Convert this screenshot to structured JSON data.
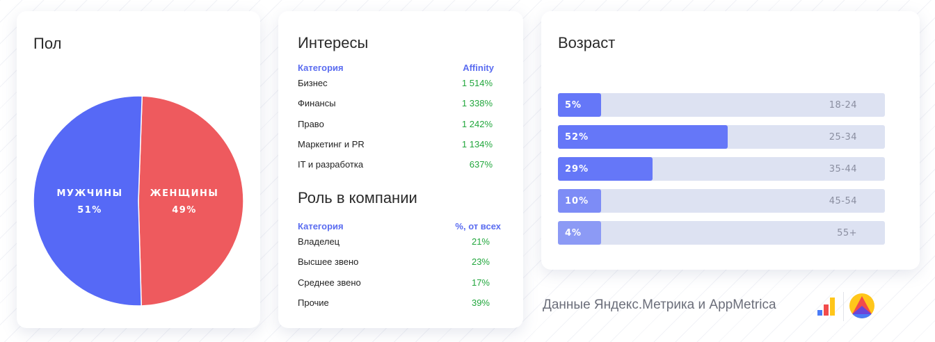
{
  "colors": {
    "male": "#5669f6",
    "female": "#ee5a5e",
    "accent_blue": "#5a6cf0",
    "affinity_green": "#21a63c",
    "bar_track": "#dde2f2"
  },
  "gender": {
    "title": "Пол"
  },
  "interests": {
    "title": "Интересы",
    "header": {
      "category": "Категория",
      "value": "Affinity"
    },
    "rows": [
      {
        "category": "Бизнес",
        "value": "1 514%"
      },
      {
        "category": "Финансы",
        "value": "1 338%"
      },
      {
        "category": "Право",
        "value": "1 242%"
      },
      {
        "category": "Маркетинг и PR",
        "value": "1 134%"
      },
      {
        "category": "IT и разработка",
        "value": "637%"
      }
    ]
  },
  "roles": {
    "title": "Роль в компании",
    "header": {
      "category": "Категория",
      "value": "%, от всех"
    },
    "rows": [
      {
        "category": "Владелец",
        "value": "21%"
      },
      {
        "category": "Высшее звено",
        "value": "23%"
      },
      {
        "category": "Среднее звено",
        "value": "17%"
      },
      {
        "category": "Прочие",
        "value": "39%"
      }
    ]
  },
  "age": {
    "title": "Возраст"
  },
  "footer": {
    "text": "Данные Яндекс.Метрика и AppMetrica",
    "logos": [
      "yandex-metrika-icon",
      "appmetrica-icon"
    ]
  },
  "chart_data": [
    {
      "type": "pie",
      "title": "Пол",
      "slices": [
        {
          "label": "МУЖЧИНЫ",
          "value": 51,
          "display": "51%",
          "color": "#5669f6"
        },
        {
          "label": "ЖЕНЩИНЫ",
          "value": 49,
          "display": "49%",
          "color": "#ee5a5e"
        }
      ]
    },
    {
      "type": "bar",
      "orientation": "horizontal",
      "title": "Возраст",
      "categories": [
        "18-24",
        "25-34",
        "35-44",
        "45-54",
        "55+"
      ],
      "values": [
        5,
        52,
        29,
        10,
        4
      ],
      "labels": [
        "5%",
        "52%",
        "29%",
        "10%",
        "4%"
      ],
      "xlim": [
        0,
        100
      ],
      "fill_colors": [
        "#6577f8",
        "#6577f8",
        "#6577f8",
        "#7d8cf6",
        "#8c9af5"
      ]
    },
    {
      "type": "table",
      "title": "Интересы",
      "columns": [
        "Категория",
        "Affinity"
      ],
      "rows": [
        [
          "Бизнес",
          "1 514%"
        ],
        [
          "Финансы",
          "1 338%"
        ],
        [
          "Право",
          "1 242%"
        ],
        [
          "Маркетинг и PR",
          "1 134%"
        ],
        [
          "IT и разработка",
          "637%"
        ]
      ]
    },
    {
      "type": "table",
      "title": "Роль в компании",
      "columns": [
        "Категория",
        "%, от всех"
      ],
      "rows": [
        [
          "Владелец",
          "21%"
        ],
        [
          "Высшее звено",
          "23%"
        ],
        [
          "Среднее звено",
          "17%"
        ],
        [
          "Прочие",
          "39%"
        ]
      ]
    }
  ]
}
